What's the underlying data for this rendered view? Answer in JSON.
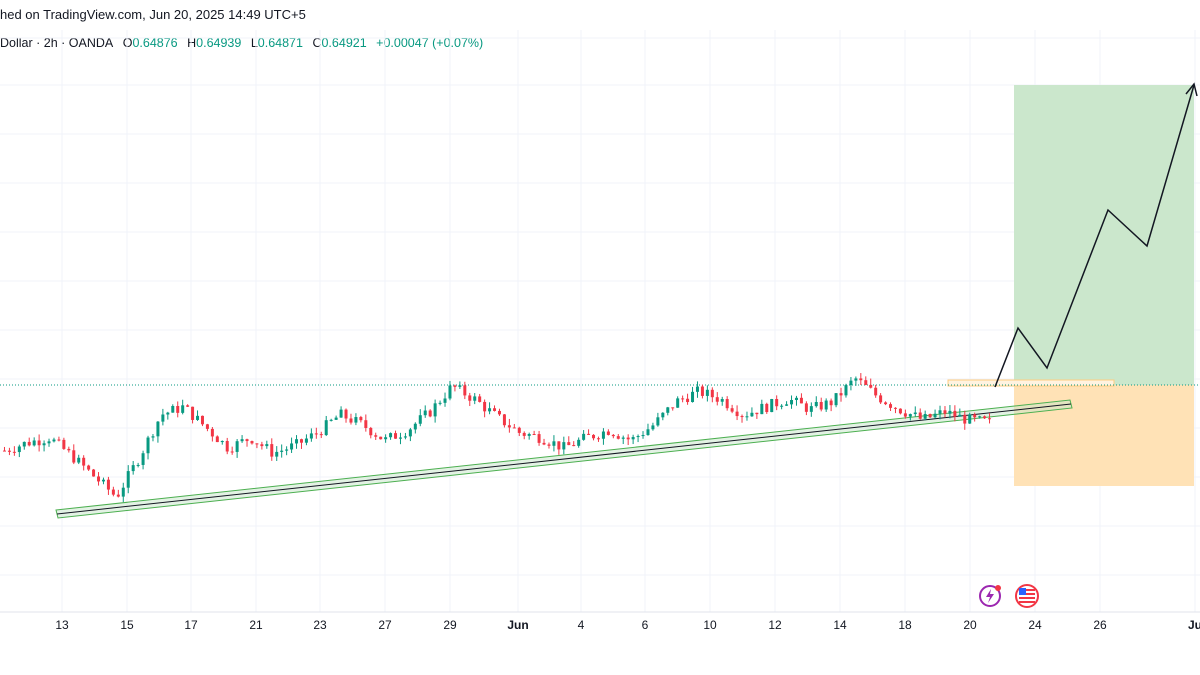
{
  "header": {
    "published": "hed on TradingView.com, Jun 20, 2025 14:49 UTC+5"
  },
  "legend": {
    "symbol": "Dollar · 2h · OANDA",
    "o_label": "O",
    "o_value": "0.64876",
    "h_label": "H",
    "h_value": "0.64939",
    "l_label": "L",
    "l_value": "0.64871",
    "c_label": "C",
    "c_value": "0.64921",
    "change": "+0.00047 (+0.07%)"
  },
  "colors": {
    "up": "#089981",
    "down": "#f23645",
    "trendline": "#4caf50",
    "target_zone": "#c8e6c9",
    "stop_zone": "#ffe0b2",
    "price_line": "#089981"
  },
  "icons": [
    "lightning-event-icon",
    "us-flag-event-icon"
  ],
  "chart_data": {
    "type": "candlestick",
    "interval": "2h",
    "x_ticks": [
      "13",
      "15",
      "17",
      "21",
      "23",
      "27",
      "29",
      "Jun",
      "4",
      "6",
      "10",
      "12",
      "14",
      "18",
      "20",
      "24",
      "26",
      "Ju"
    ],
    "current_price": 0.64921,
    "candles_approx_close": [
      0.6477,
      0.648,
      0.6482,
      0.6475,
      0.6467,
      0.6459,
      0.6474,
      0.6491,
      0.6494,
      0.6486,
      0.6478,
      0.6482,
      0.6476,
      0.6479,
      0.6484,
      0.6491,
      0.6487,
      0.6481,
      0.6485,
      0.6492,
      0.6502,
      0.6497,
      0.649,
      0.6484,
      0.6482,
      0.6478,
      0.6482,
      0.6485,
      0.6481,
      0.6487,
      0.6496,
      0.65,
      0.6497,
      0.6491,
      0.6494,
      0.6497,
      0.6493,
      0.6496,
      0.6505,
      0.6498,
      0.6493,
      0.6489,
      0.6492,
      0.6489,
      0.6488
    ],
    "annotations": {
      "trend_channel": "ascending support from 13 to 20",
      "long_position": {
        "entry": 0.64921,
        "target_zone": "green",
        "stop_zone": "orange"
      },
      "projected_path": "zig-zag rising to top-right"
    }
  }
}
